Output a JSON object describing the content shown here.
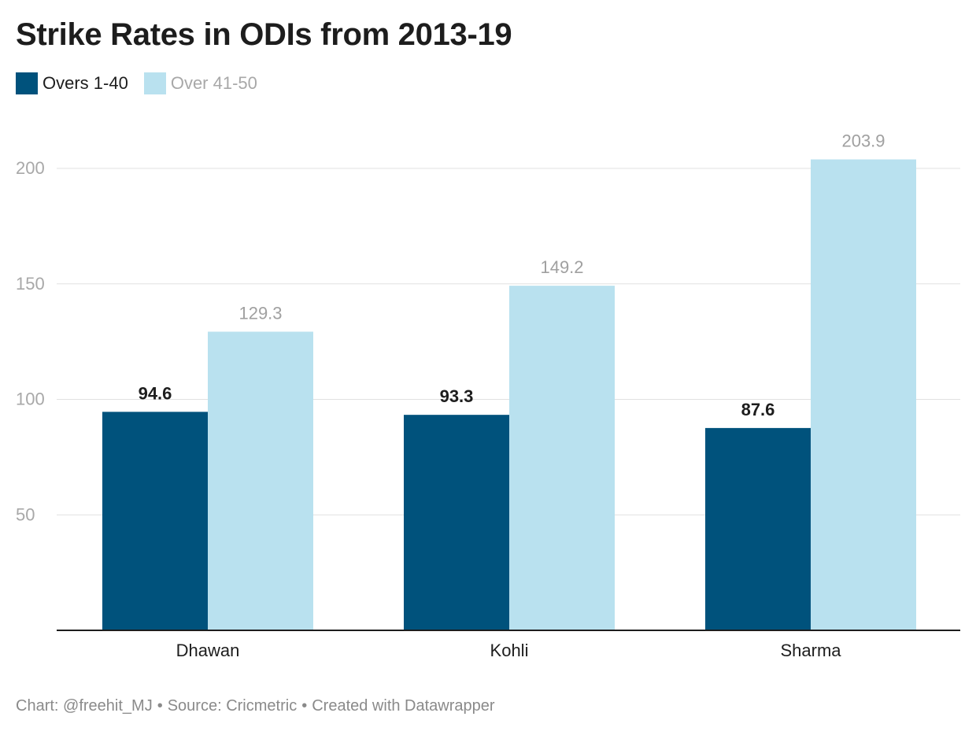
{
  "header": {
    "title": "Strike Rates in ODIs from 2013-19"
  },
  "legend": [
    {
      "label": "Overs 1-40",
      "color": "#00527c"
    },
    {
      "label": "Over 41-50",
      "color": "#b9e1ef"
    }
  ],
  "chart_data": {
    "type": "bar",
    "title": "Strike Rates in ODIs from 2013-19",
    "categories": [
      "Dhawan",
      "Kohli",
      "Sharma"
    ],
    "series": [
      {
        "name": "Overs 1-40",
        "values": [
          94.6,
          93.3,
          87.6
        ],
        "color": "#00527c"
      },
      {
        "name": "Over 41-50",
        "values": [
          129.3,
          149.2,
          203.9
        ],
        "color": "#b9e1ef"
      }
    ],
    "y_ticks": [
      "50",
      "100",
      "150",
      "200"
    ],
    "ylim": [
      0,
      200
    ],
    "xlabel": "",
    "ylabel": "",
    "grid": true,
    "legend_position": "top-left"
  },
  "footer": {
    "chart_credit": "Chart: @freehit_MJ",
    "source": "Source: Cricmetric",
    "created_with": "Created with Datawrapper",
    "separator": "•"
  }
}
